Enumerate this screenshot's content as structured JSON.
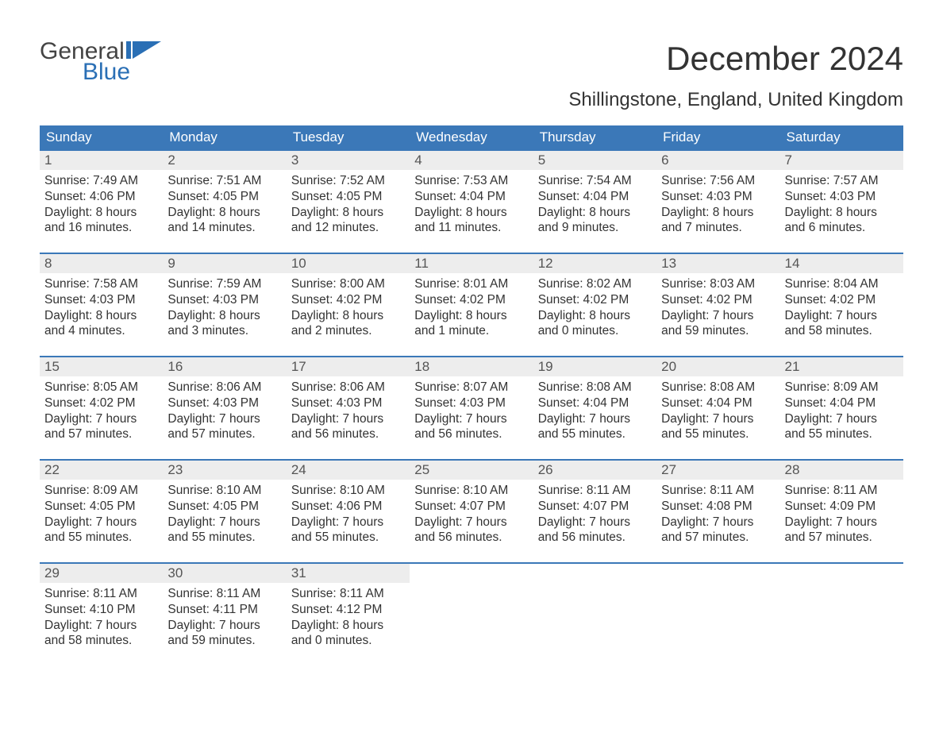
{
  "logo": {
    "word1": "General",
    "word2": "Blue"
  },
  "title": "December 2024",
  "subtitle": "Shillingstone, England, United Kingdom",
  "colors": {
    "header_blue": "#3b78b8",
    "logo_blue": "#2a6fb5",
    "row_gray": "#ededed",
    "text": "#333333"
  },
  "day_names": [
    "Sunday",
    "Monday",
    "Tuesday",
    "Wednesday",
    "Thursday",
    "Friday",
    "Saturday"
  ],
  "weeks": [
    [
      {
        "n": "1",
        "sr": "7:49 AM",
        "ss": "4:06 PM",
        "dh": "8",
        "dm": "16 minutes"
      },
      {
        "n": "2",
        "sr": "7:51 AM",
        "ss": "4:05 PM",
        "dh": "8",
        "dm": "14 minutes"
      },
      {
        "n": "3",
        "sr": "7:52 AM",
        "ss": "4:05 PM",
        "dh": "8",
        "dm": "12 minutes"
      },
      {
        "n": "4",
        "sr": "7:53 AM",
        "ss": "4:04 PM",
        "dh": "8",
        "dm": "11 minutes"
      },
      {
        "n": "5",
        "sr": "7:54 AM",
        "ss": "4:04 PM",
        "dh": "8",
        "dm": "9 minutes"
      },
      {
        "n": "6",
        "sr": "7:56 AM",
        "ss": "4:03 PM",
        "dh": "8",
        "dm": "7 minutes"
      },
      {
        "n": "7",
        "sr": "7:57 AM",
        "ss": "4:03 PM",
        "dh": "8",
        "dm": "6 minutes"
      }
    ],
    [
      {
        "n": "8",
        "sr": "7:58 AM",
        "ss": "4:03 PM",
        "dh": "8",
        "dm": "4 minutes"
      },
      {
        "n": "9",
        "sr": "7:59 AM",
        "ss": "4:03 PM",
        "dh": "8",
        "dm": "3 minutes"
      },
      {
        "n": "10",
        "sr": "8:00 AM",
        "ss": "4:02 PM",
        "dh": "8",
        "dm": "2 minutes"
      },
      {
        "n": "11",
        "sr": "8:01 AM",
        "ss": "4:02 PM",
        "dh": "8",
        "dm": "1 minute"
      },
      {
        "n": "12",
        "sr": "8:02 AM",
        "ss": "4:02 PM",
        "dh": "8",
        "dm": "0 minutes"
      },
      {
        "n": "13",
        "sr": "8:03 AM",
        "ss": "4:02 PM",
        "dh": "7",
        "dm": "59 minutes"
      },
      {
        "n": "14",
        "sr": "8:04 AM",
        "ss": "4:02 PM",
        "dh": "7",
        "dm": "58 minutes"
      }
    ],
    [
      {
        "n": "15",
        "sr": "8:05 AM",
        "ss": "4:02 PM",
        "dh": "7",
        "dm": "57 minutes"
      },
      {
        "n": "16",
        "sr": "8:06 AM",
        "ss": "4:03 PM",
        "dh": "7",
        "dm": "57 minutes"
      },
      {
        "n": "17",
        "sr": "8:06 AM",
        "ss": "4:03 PM",
        "dh": "7",
        "dm": "56 minutes"
      },
      {
        "n": "18",
        "sr": "8:07 AM",
        "ss": "4:03 PM",
        "dh": "7",
        "dm": "56 minutes"
      },
      {
        "n": "19",
        "sr": "8:08 AM",
        "ss": "4:04 PM",
        "dh": "7",
        "dm": "55 minutes"
      },
      {
        "n": "20",
        "sr": "8:08 AM",
        "ss": "4:04 PM",
        "dh": "7",
        "dm": "55 minutes"
      },
      {
        "n": "21",
        "sr": "8:09 AM",
        "ss": "4:04 PM",
        "dh": "7",
        "dm": "55 minutes"
      }
    ],
    [
      {
        "n": "22",
        "sr": "8:09 AM",
        "ss": "4:05 PM",
        "dh": "7",
        "dm": "55 minutes"
      },
      {
        "n": "23",
        "sr": "8:10 AM",
        "ss": "4:05 PM",
        "dh": "7",
        "dm": "55 minutes"
      },
      {
        "n": "24",
        "sr": "8:10 AM",
        "ss": "4:06 PM",
        "dh": "7",
        "dm": "55 minutes"
      },
      {
        "n": "25",
        "sr": "8:10 AM",
        "ss": "4:07 PM",
        "dh": "7",
        "dm": "56 minutes"
      },
      {
        "n": "26",
        "sr": "8:11 AM",
        "ss": "4:07 PM",
        "dh": "7",
        "dm": "56 minutes"
      },
      {
        "n": "27",
        "sr": "8:11 AM",
        "ss": "4:08 PM",
        "dh": "7",
        "dm": "57 minutes"
      },
      {
        "n": "28",
        "sr": "8:11 AM",
        "ss": "4:09 PM",
        "dh": "7",
        "dm": "57 minutes"
      }
    ],
    [
      {
        "n": "29",
        "sr": "8:11 AM",
        "ss": "4:10 PM",
        "dh": "7",
        "dm": "58 minutes"
      },
      {
        "n": "30",
        "sr": "8:11 AM",
        "ss": "4:11 PM",
        "dh": "7",
        "dm": "59 minutes"
      },
      {
        "n": "31",
        "sr": "8:11 AM",
        "ss": "4:12 PM",
        "dh": "8",
        "dm": "0 minutes"
      },
      null,
      null,
      null,
      null
    ]
  ],
  "labels": {
    "sunrise": "Sunrise:",
    "sunset": "Sunset:",
    "daylight": "Daylight:",
    "hours": "hours",
    "and": "and"
  }
}
